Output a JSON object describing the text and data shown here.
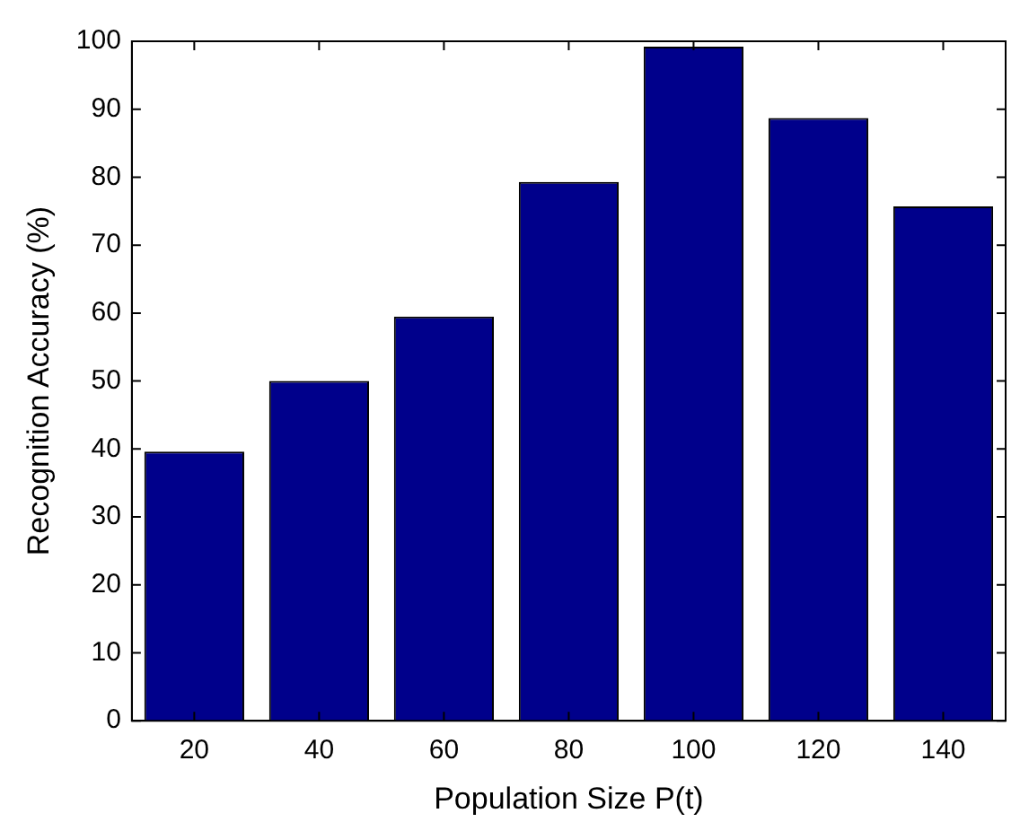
{
  "chart_data": {
    "type": "bar",
    "xlabel": "Population Size P(t)",
    "ylabel": "Recognition Accuracy (%)",
    "categories": [
      "20",
      "40",
      "60",
      "80",
      "100",
      "120",
      "140"
    ],
    "values": [
      39.6,
      50,
      59.5,
      79.3,
      99.2,
      88.7,
      75.7
    ],
    "color": "#00008b",
    "ylim": [
      0,
      100
    ],
    "yticks": [
      0,
      10,
      20,
      30,
      40,
      50,
      60,
      70,
      80,
      90,
      100
    ],
    "grid": false,
    "legend": false
  }
}
